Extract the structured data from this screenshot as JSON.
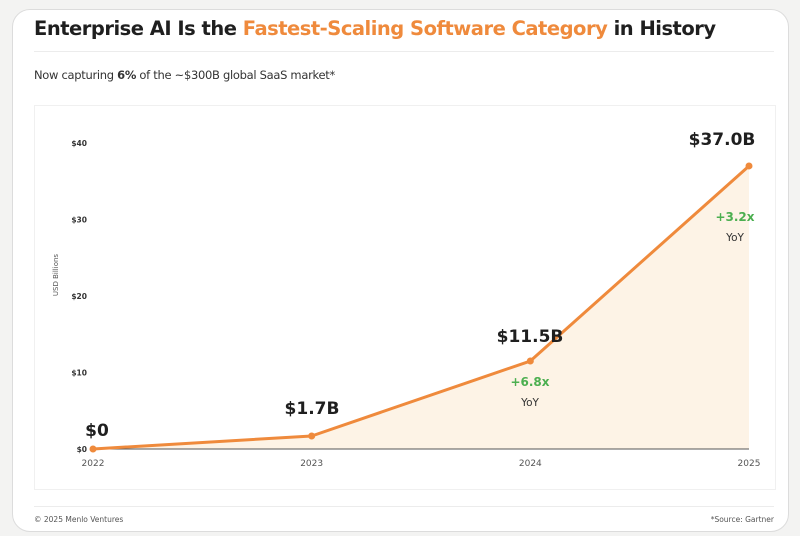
{
  "header": {
    "title_pre": "Enterprise AI Is the ",
    "title_highlight": "Fastest-Scaling Software Category",
    "title_post": " in History",
    "subtitle_pre": "Now capturing ",
    "subtitle_bold": "6%",
    "subtitle_post": " of the ~$300B global SaaS market*"
  },
  "footer": {
    "copyright": "© 2025 Menlo Ventures",
    "source": "*Source: Gartner"
  },
  "colors": {
    "accent": "#ef8a3c",
    "growth": "#4caf50",
    "fill": "#fdf3e6"
  },
  "chart_data": {
    "type": "area",
    "x": [
      "2022",
      "2023",
      "2024",
      "2025"
    ],
    "values": [
      0,
      1.7,
      11.5,
      37.0
    ],
    "data_labels": [
      "$0",
      "$1.7B",
      "$11.5B",
      "$37.0B"
    ],
    "annotations": [
      {
        "x": "2024",
        "text": "+6.8x",
        "sub": "YoY"
      },
      {
        "x": "2025",
        "text": "+3.2x",
        "sub": "YoY"
      }
    ],
    "ylabel": "USD Billions",
    "ylim": [
      0,
      40
    ],
    "yticks": [
      0,
      10,
      20,
      30,
      40
    ],
    "ytick_labels": [
      "$0",
      "$10",
      "$20",
      "$30",
      "$40"
    ],
    "grid": false
  }
}
